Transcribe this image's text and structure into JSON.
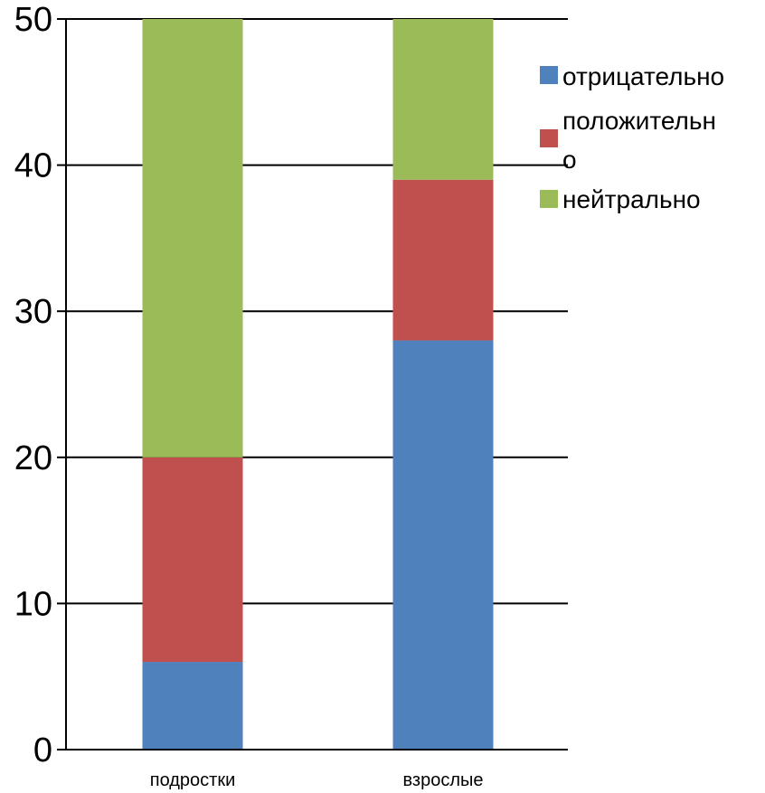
{
  "chart_data": {
    "type": "bar",
    "stacked": true,
    "categories": [
      "подростки",
      "взрослые"
    ],
    "series": [
      {
        "name": "отрицательно",
        "color": "#4f81bd",
        "values": [
          6,
          28
        ]
      },
      {
        "name": "положительно",
        "color": "#c0504d",
        "values": [
          14,
          11
        ]
      },
      {
        "name": "нейтрально",
        "color": "#9bbb59",
        "values": [
          30,
          11
        ]
      }
    ],
    "legend": {
      "entries": [
        {
          "lines": [
            "отрицательно"
          ]
        },
        {
          "lines": [
            "положительн",
            "о"
          ]
        },
        {
          "lines": [
            "нейтрально"
          ]
        }
      ],
      "position": "right"
    },
    "y_ticks": [
      "0",
      "10",
      "20",
      "30",
      "40",
      "50"
    ],
    "ylim": [
      0,
      50
    ],
    "grid": true,
    "title": "",
    "xlabel": "",
    "ylabel": ""
  }
}
